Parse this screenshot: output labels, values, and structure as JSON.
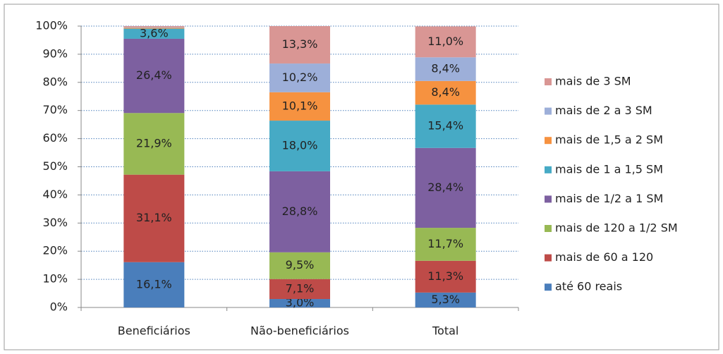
{
  "chart_data": {
    "type": "stacked_bar_percent",
    "categories": [
      "Beneficiários",
      "Não-beneficiários",
      "Total"
    ],
    "series": [
      {
        "name": "até 60 reais",
        "color": "#4a7ebb",
        "values": [
          16.1,
          3.0,
          5.3
        ],
        "value_labels": [
          "16,1%",
          "3,0%",
          "5,3%"
        ]
      },
      {
        "name": "mais de 60 a 120",
        "color": "#be4b48",
        "values": [
          31.1,
          7.1,
          11.3
        ],
        "value_labels": [
          "31,1%",
          "7,1%",
          "11,3%"
        ]
      },
      {
        "name": "mais de 120 a 1/2 SM",
        "color": "#98b954",
        "values": [
          21.9,
          9.5,
          11.7
        ],
        "value_labels": [
          "21,9%",
          "9,5%",
          "11,7%"
        ]
      },
      {
        "name": "mais de 1/2 a 1 SM",
        "color": "#7d60a0",
        "values": [
          26.4,
          28.8,
          28.4
        ],
        "value_labels": [
          "26,4%",
          "28,8%",
          "28,4%"
        ]
      },
      {
        "name": "mais de 1 a 1,5 SM",
        "color": "#46aac5",
        "values": [
          3.6,
          18.0,
          15.4
        ],
        "value_labels": [
          "3,6%",
          "18,0%",
          "15,4%"
        ]
      },
      {
        "name": "mais de 1,5 a 2 SM",
        "color": "#f69240",
        "values": [
          0.3,
          10.1,
          8.4
        ],
        "value_labels": [
          null,
          "10,1%",
          "8,4%"
        ]
      },
      {
        "name": "mais de 2 a 3 SM",
        "color": "#9dafd9",
        "values": [
          0.2,
          10.2,
          8.4
        ],
        "value_labels": [
          null,
          "10,2%",
          "8,4%"
        ]
      },
      {
        "name": "mais de 3 SM",
        "color": "#d99694",
        "values": [
          0.4,
          13.3,
          11.0
        ],
        "value_labels": [
          null,
          "13,3%",
          "11,0%"
        ]
      }
    ],
    "ylim": [
      0,
      100
    ],
    "yticks": [
      {
        "value": 0,
        "label": "0%"
      },
      {
        "value": 10,
        "label": "10%"
      },
      {
        "value": 20,
        "label": "20%"
      },
      {
        "value": 30,
        "label": "30%"
      },
      {
        "value": 40,
        "label": "40%"
      },
      {
        "value": 50,
        "label": "50%"
      },
      {
        "value": 60,
        "label": "60%"
      },
      {
        "value": 70,
        "label": "70%"
      },
      {
        "value": 80,
        "label": "80%"
      },
      {
        "value": 90,
        "label": "90%"
      },
      {
        "value": 100,
        "label": "100%"
      }
    ],
    "grid": true,
    "legend": "right"
  }
}
